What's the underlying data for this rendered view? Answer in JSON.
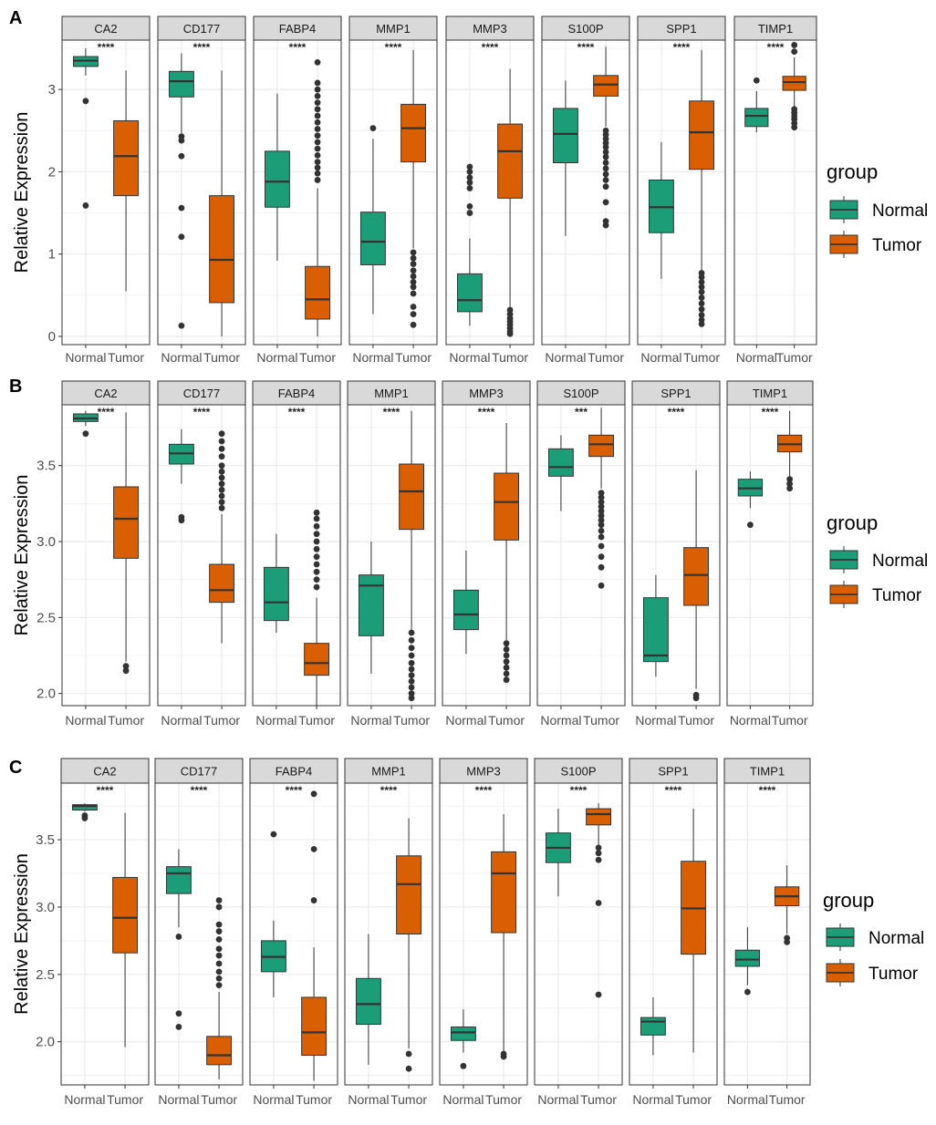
{
  "colors": {
    "normal": "#1B9E77",
    "tumor": "#D95F02",
    "strip": "#D9D9D9",
    "grid": "#EBEBEB",
    "outlier": "#333333"
  },
  "chart_data": [
    {
      "type": "box",
      "panel": "A",
      "ylabel": "Relative Expression",
      "ylim": [
        -0.1,
        3.6
      ],
      "yticks": [
        0,
        1,
        2,
        3
      ],
      "groups": [
        "Normal",
        "Tumor"
      ],
      "legend": {
        "title": "group",
        "entries": [
          "Normal",
          "Tumor"
        ],
        "position": "right"
      },
      "facets": [
        {
          "gene": "CA2",
          "sig": "****",
          "normal": {
            "q1": 3.28,
            "median": 3.35,
            "q3": 3.4,
            "whisker_low": 3.17,
            "whisker_high": 3.5,
            "outliers": [
              2.86,
              1.59
            ]
          },
          "tumor": {
            "q1": 1.71,
            "median": 2.19,
            "q3": 2.62,
            "whisker_low": 0.55,
            "whisker_high": 3.23,
            "outliers": []
          }
        },
        {
          "gene": "CD177",
          "sig": "****",
          "normal": {
            "q1": 2.91,
            "median": 3.1,
            "q3": 3.22,
            "whisker_low": 2.47,
            "whisker_high": 3.44,
            "outliers": [
              2.43,
              2.38,
              2.19,
              1.56,
              1.21,
              0.13
            ]
          },
          "tumor": {
            "q1": 0.41,
            "median": 0.93,
            "q3": 1.71,
            "whisker_low": 0.0,
            "whisker_high": 3.23,
            "outliers": []
          }
        },
        {
          "gene": "FABP4",
          "sig": "****",
          "normal": {
            "q1": 1.57,
            "median": 1.88,
            "q3": 2.25,
            "whisker_low": 0.92,
            "whisker_high": 2.95,
            "outliers": []
          },
          "tumor": {
            "q1": 0.21,
            "median": 0.45,
            "q3": 0.85,
            "whisker_low": 0.0,
            "whisker_high": 1.8,
            "outliers": [
              3.33,
              3.08,
              3.0,
              2.92,
              2.84,
              2.76,
              2.68,
              2.6,
              2.52,
              2.44,
              2.36,
              2.28,
              2.2,
              2.12,
              2.05,
              1.98,
              1.9
            ]
          }
        },
        {
          "gene": "MMP1",
          "sig": "****",
          "normal": {
            "q1": 0.87,
            "median": 1.15,
            "q3": 1.51,
            "whisker_low": 0.27,
            "whisker_high": 2.4,
            "outliers": [
              2.53
            ]
          },
          "tumor": {
            "q1": 2.12,
            "median": 2.53,
            "q3": 2.82,
            "whisker_low": 1.07,
            "whisker_high": 3.48,
            "outliers": [
              1.02,
              0.95,
              0.88,
              0.8,
              0.73,
              0.66,
              0.6,
              0.52,
              0.36,
              0.27,
              0.14
            ]
          }
        },
        {
          "gene": "MMP3",
          "sig": "****",
          "normal": {
            "q1": 0.3,
            "median": 0.44,
            "q3": 0.76,
            "whisker_low": 0.13,
            "whisker_high": 1.19,
            "outliers": [
              2.06,
              2.0,
              1.93,
              1.87,
              1.8,
              1.58,
              1.5
            ]
          },
          "tumor": {
            "q1": 1.68,
            "median": 2.25,
            "q3": 2.58,
            "whisker_low": 0.35,
            "whisker_high": 3.25,
            "outliers": [
              0.32,
              0.27,
              0.22,
              0.18,
              0.14,
              0.1,
              0.06,
              0.03
            ]
          }
        },
        {
          "gene": "S100P",
          "sig": "****",
          "normal": {
            "q1": 2.11,
            "median": 2.46,
            "q3": 2.77,
            "whisker_low": 1.22,
            "whisker_high": 3.11,
            "outliers": []
          },
          "tumor": {
            "q1": 2.92,
            "median": 3.06,
            "q3": 3.17,
            "whisker_low": 2.55,
            "whisker_high": 3.52,
            "outliers": [
              2.5,
              2.45,
              2.4,
              2.35,
              2.3,
              2.24,
              2.18,
              2.11,
              2.04,
              1.97,
              1.9,
              1.82,
              1.63,
              1.4,
              1.35
            ]
          }
        },
        {
          "gene": "SPP1",
          "sig": "****",
          "normal": {
            "q1": 1.26,
            "median": 1.57,
            "q3": 1.9,
            "whisker_low": 0.7,
            "whisker_high": 2.36,
            "outliers": []
          },
          "tumor": {
            "q1": 2.03,
            "median": 2.48,
            "q3": 2.86,
            "whisker_low": 0.8,
            "whisker_high": 3.48,
            "outliers": [
              0.77,
              0.72,
              0.66,
              0.6,
              0.54,
              0.47,
              0.4,
              0.33,
              0.26,
              0.2,
              0.15
            ]
          }
        },
        {
          "gene": "TIMP1",
          "sig": "****",
          "normal": {
            "q1": 2.55,
            "median": 2.68,
            "q3": 2.77,
            "whisker_low": 2.48,
            "whisker_high": 2.98,
            "outliers": [
              3.11
            ]
          },
          "tumor": {
            "q1": 2.99,
            "median": 3.09,
            "q3": 3.16,
            "whisker_low": 2.78,
            "whisker_high": 3.39,
            "outliers": [
              3.54,
              3.46,
              2.76,
              2.72,
              2.68,
              2.64,
              2.59,
              2.54
            ]
          }
        }
      ]
    },
    {
      "type": "box",
      "panel": "B",
      "ylabel": "Relative Expression",
      "ylim": [
        1.92,
        3.9
      ],
      "yticks": [
        2.0,
        2.5,
        3.0,
        3.5
      ],
      "groups": [
        "Normal",
        "Tumor"
      ],
      "legend": {
        "title": "group",
        "entries": [
          "Normal",
          "Tumor"
        ],
        "position": "right"
      },
      "facets": [
        {
          "gene": "CA2",
          "sig": "****",
          "normal": {
            "q1": 3.79,
            "median": 3.81,
            "q3": 3.84,
            "whisker_low": 3.76,
            "whisker_high": 3.86,
            "outliers": [
              3.71
            ]
          },
          "tumor": {
            "q1": 2.89,
            "median": 3.15,
            "q3": 3.36,
            "whisker_low": 2.21,
            "whisker_high": 3.85,
            "outliers": [
              2.18,
              2.15
            ]
          }
        },
        {
          "gene": "CD177",
          "sig": "****",
          "normal": {
            "q1": 3.51,
            "median": 3.58,
            "q3": 3.64,
            "whisker_low": 3.38,
            "whisker_high": 3.74,
            "outliers": [
              3.16,
              3.14
            ]
          },
          "tumor": {
            "q1": 2.6,
            "median": 2.68,
            "q3": 2.85,
            "whisker_low": 2.33,
            "whisker_high": 3.18,
            "outliers": [
              3.71,
              3.66,
              3.61,
              3.56,
              3.5,
              3.46,
              3.42,
              3.38,
              3.34,
              3.3,
              3.26,
              3.22
            ]
          }
        },
        {
          "gene": "FABP4",
          "sig": "****",
          "normal": {
            "q1": 2.48,
            "median": 2.6,
            "q3": 2.83,
            "whisker_low": 2.4,
            "whisker_high": 3.05,
            "outliers": []
          },
          "tumor": {
            "q1": 2.12,
            "median": 2.2,
            "q3": 2.33,
            "whisker_low": 1.92,
            "whisker_high": 2.63,
            "outliers": [
              3.19,
              3.15,
              3.1,
              3.05,
              3.0,
              2.95,
              2.9,
              2.85,
              2.8,
              2.75,
              2.7
            ]
          }
        },
        {
          "gene": "MMP1",
          "sig": "****",
          "normal": {
            "q1": 2.38,
            "median": 2.71,
            "q3": 2.78,
            "whisker_low": 2.13,
            "whisker_high": 3.0,
            "outliers": []
          },
          "tumor": {
            "q1": 3.08,
            "median": 3.33,
            "q3": 3.51,
            "whisker_low": 2.42,
            "whisker_high": 3.86,
            "outliers": [
              2.4,
              2.35,
              2.3,
              2.25,
              2.2,
              2.16,
              2.12,
              2.08,
              2.04,
              2.0,
              1.97
            ]
          }
        },
        {
          "gene": "MMP3",
          "sig": "****",
          "normal": {
            "q1": 2.42,
            "median": 2.52,
            "q3": 2.68,
            "whisker_low": 2.26,
            "whisker_high": 2.94,
            "outliers": []
          },
          "tumor": {
            "q1": 3.01,
            "median": 3.26,
            "q3": 3.45,
            "whisker_low": 2.35,
            "whisker_high": 3.78,
            "outliers": [
              2.33,
              2.29,
              2.25,
              2.21,
              2.17,
              2.13,
              2.09
            ]
          }
        },
        {
          "gene": "S100P",
          "sig": "***",
          "normal": {
            "q1": 3.43,
            "median": 3.49,
            "q3": 3.61,
            "whisker_low": 3.2,
            "whisker_high": 3.7,
            "outliers": []
          },
          "tumor": {
            "q1": 3.56,
            "median": 3.64,
            "q3": 3.7,
            "whisker_low": 3.35,
            "whisker_high": 3.88,
            "outliers": [
              3.32,
              3.29,
              3.26,
              3.23,
              3.2,
              3.17,
              3.14,
              3.11,
              3.07,
              3.03,
              2.97,
              2.9,
              2.83,
              2.71
            ]
          }
        },
        {
          "gene": "SPP1",
          "sig": "****",
          "normal": {
            "q1": 2.21,
            "median": 2.25,
            "q3": 2.63,
            "whisker_low": 2.11,
            "whisker_high": 2.78,
            "outliers": []
          },
          "tumor": {
            "q1": 2.58,
            "median": 2.78,
            "q3": 2.96,
            "whisker_low": 2.03,
            "whisker_high": 3.47,
            "outliers": [
              1.99,
              1.97
            ]
          }
        },
        {
          "gene": "TIMP1",
          "sig": "****",
          "normal": {
            "q1": 3.3,
            "median": 3.35,
            "q3": 3.41,
            "whisker_low": 3.22,
            "whisker_high": 3.46,
            "outliers": [
              3.11
            ]
          },
          "tumor": {
            "q1": 3.59,
            "median": 3.64,
            "q3": 3.7,
            "whisker_low": 3.43,
            "whisker_high": 3.86,
            "outliers": [
              3.41,
              3.38,
              3.35
            ]
          }
        }
      ]
    },
    {
      "type": "box",
      "panel": "C",
      "ylabel": "Relative Expression",
      "ylim": [
        1.68,
        3.92
      ],
      "yticks": [
        2.0,
        2.5,
        3.0,
        3.5
      ],
      "groups": [
        "Normal",
        "Tumor"
      ],
      "legend": {
        "title": "group",
        "entries": [
          "Normal",
          "Tumor"
        ],
        "position": "right"
      },
      "facets": [
        {
          "gene": "CA2",
          "sig": "****",
          "normal": {
            "q1": 3.72,
            "median": 3.75,
            "q3": 3.76,
            "whisker_low": 3.71,
            "whisker_high": 3.77,
            "outliers": [
              3.68,
              3.66
            ]
          },
          "tumor": {
            "q1": 2.66,
            "median": 2.92,
            "q3": 3.22,
            "whisker_low": 1.96,
            "whisker_high": 3.7,
            "outliers": []
          }
        },
        {
          "gene": "CD177",
          "sig": "****",
          "normal": {
            "q1": 3.1,
            "median": 3.25,
            "q3": 3.3,
            "whisker_low": 2.85,
            "whisker_high": 3.43,
            "outliers": [
              2.78,
              2.21,
              2.11
            ]
          },
          "tumor": {
            "q1": 1.83,
            "median": 1.9,
            "q3": 2.04,
            "whisker_low": 1.72,
            "whisker_high": 2.37,
            "outliers": [
              3.05,
              3.0,
              2.87,
              2.82,
              2.76,
              2.69,
              2.64,
              2.58,
              2.52,
              2.47,
              2.42
            ]
          }
        },
        {
          "gene": "FABP4",
          "sig": "****",
          "normal": {
            "q1": 2.52,
            "median": 2.63,
            "q3": 2.75,
            "whisker_low": 2.33,
            "whisker_high": 2.9,
            "outliers": [
              3.54
            ]
          },
          "tumor": {
            "q1": 1.9,
            "median": 2.07,
            "q3": 2.33,
            "whisker_low": 1.71,
            "whisker_high": 2.7,
            "outliers": [
              3.84,
              3.43,
              3.05
            ]
          }
        },
        {
          "gene": "MMP1",
          "sig": "****",
          "normal": {
            "q1": 2.13,
            "median": 2.28,
            "q3": 2.47,
            "whisker_low": 1.83,
            "whisker_high": 2.8,
            "outliers": []
          },
          "tumor": {
            "q1": 2.8,
            "median": 3.17,
            "q3": 3.38,
            "whisker_low": 1.95,
            "whisker_high": 3.66,
            "outliers": [
              1.91,
              1.8
            ]
          }
        },
        {
          "gene": "MMP3",
          "sig": "****",
          "normal": {
            "q1": 2.01,
            "median": 2.07,
            "q3": 2.11,
            "whisker_low": 1.92,
            "whisker_high": 2.24,
            "outliers": [
              1.82
            ]
          },
          "tumor": {
            "q1": 2.81,
            "median": 3.25,
            "q3": 3.41,
            "whisker_low": 1.93,
            "whisker_high": 3.69,
            "outliers": [
              1.91,
              1.89
            ]
          }
        },
        {
          "gene": "S100P",
          "sig": "****",
          "normal": {
            "q1": 3.33,
            "median": 3.44,
            "q3": 3.55,
            "whisker_low": 3.08,
            "whisker_high": 3.73,
            "outliers": []
          },
          "tumor": {
            "q1": 3.61,
            "median": 3.69,
            "q3": 3.73,
            "whisker_low": 3.46,
            "whisker_high": 3.77,
            "outliers": [
              3.44,
              3.4,
              3.35,
              3.03,
              2.35
            ]
          }
        },
        {
          "gene": "SPP1",
          "sig": "****",
          "normal": {
            "q1": 2.05,
            "median": 2.15,
            "q3": 2.18,
            "whisker_low": 1.9,
            "whisker_high": 2.33,
            "outliers": []
          },
          "tumor": {
            "q1": 2.65,
            "median": 2.99,
            "q3": 3.34,
            "whisker_low": 1.92,
            "whisker_high": 3.73,
            "outliers": []
          }
        },
        {
          "gene": "TIMP1",
          "sig": "****",
          "normal": {
            "q1": 2.56,
            "median": 2.61,
            "q3": 2.68,
            "whisker_low": 2.42,
            "whisker_high": 2.85,
            "outliers": [
              2.37
            ]
          },
          "tumor": {
            "q1": 3.01,
            "median": 3.08,
            "q3": 3.15,
            "whisker_low": 2.8,
            "whisker_high": 3.31,
            "outliers": [
              2.77,
              2.74
            ]
          }
        }
      ]
    }
  ]
}
